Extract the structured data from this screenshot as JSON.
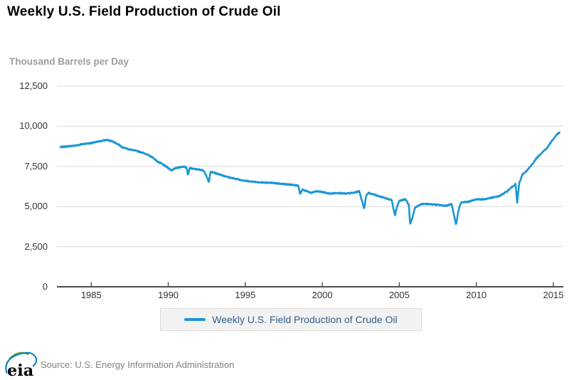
{
  "title": "Weekly U.S. Field Production of Crude Oil",
  "y_axis": {
    "label": "Thousand Barrels per Day",
    "tick_labels": [
      "0",
      "2,500",
      "5,000",
      "7,500",
      "10,000",
      "12,500"
    ]
  },
  "x_axis": {
    "tick_labels": [
      "1985",
      "1990",
      "1995",
      "2000",
      "2005",
      "2010",
      "2015"
    ]
  },
  "legend": {
    "label": "Weekly U.S. Field Production of Crude Oil"
  },
  "footer": {
    "logo_text": "eia",
    "source": "Source: U.S. Energy Information Administration"
  },
  "colors": {
    "line": "#1a96d5",
    "grid": "#d9d9d9",
    "axis": "#4d4d4d",
    "axis_text": "#333333",
    "subtitle_text": "#9e9e9e",
    "legend_text": "#33608a",
    "legend_bg": "#f2f2f2",
    "legend_border": "#dddddd",
    "source_text": "#808080",
    "logo_green": "#5fa821",
    "logo_blue": "#0c7cc2"
  },
  "chart_data": {
    "type": "line",
    "title": "Weekly U.S. Field Production of Crude Oil",
    "xlabel": "",
    "ylabel": "Thousand Barrels per Day",
    "units": "thousand barrels per day",
    "frequency": "weekly",
    "xlim": [
      1983.0,
      2015.6
    ],
    "ylim": [
      0,
      12500
    ],
    "x_ticks": [
      1985,
      1990,
      1995,
      2000,
      2005,
      2010,
      2015
    ],
    "y_ticks": [
      0,
      2500,
      5000,
      7500,
      10000,
      12500
    ],
    "grid": "horizontal",
    "legend_position": "bottom",
    "series": [
      {
        "name": "Weekly U.S. Field Production of Crude Oil",
        "color": "#1a96d5",
        "noise_amplitude": 32,
        "anchor_points": [
          [
            1983.0,
            8700
          ],
          [
            1983.5,
            8750
          ],
          [
            1984.0,
            8800
          ],
          [
            1984.5,
            8900
          ],
          [
            1985.0,
            8950
          ],
          [
            1985.5,
            9050
          ],
          [
            1986.0,
            9150
          ],
          [
            1986.4,
            9050
          ],
          [
            1986.8,
            8850
          ],
          [
            1987.0,
            8700
          ],
          [
            1987.5,
            8550
          ],
          [
            1988.0,
            8450
          ],
          [
            1988.5,
            8300
          ],
          [
            1989.0,
            8050
          ],
          [
            1989.3,
            7800
          ],
          [
            1989.6,
            7650
          ],
          [
            1990.0,
            7400
          ],
          [
            1990.2,
            7250
          ],
          [
            1990.5,
            7400
          ],
          [
            1991.0,
            7500
          ],
          [
            1991.2,
            7400
          ],
          [
            1991.28,
            6950
          ],
          [
            1991.4,
            7400
          ],
          [
            1991.6,
            7350
          ],
          [
            1992.0,
            7300
          ],
          [
            1992.3,
            7250
          ],
          [
            1992.63,
            6550
          ],
          [
            1992.75,
            7150
          ],
          [
            1993.0,
            7100
          ],
          [
            1993.5,
            6950
          ],
          [
            1994.0,
            6800
          ],
          [
            1994.5,
            6700
          ],
          [
            1995.0,
            6600
          ],
          [
            1995.5,
            6550
          ],
          [
            1996.0,
            6500
          ],
          [
            1996.5,
            6480
          ],
          [
            1997.0,
            6450
          ],
          [
            1997.5,
            6400
          ],
          [
            1998.0,
            6350
          ],
          [
            1998.45,
            6300
          ],
          [
            1998.55,
            5800
          ],
          [
            1998.7,
            6050
          ],
          [
            1999.0,
            5950
          ],
          [
            1999.3,
            5850
          ],
          [
            1999.6,
            5950
          ],
          [
            2000.0,
            5900
          ],
          [
            2000.5,
            5800
          ],
          [
            2001.0,
            5850
          ],
          [
            2001.5,
            5800
          ],
          [
            2002.0,
            5850
          ],
          [
            2002.4,
            5950
          ],
          [
            2002.72,
            4870
          ],
          [
            2002.85,
            5700
          ],
          [
            2003.0,
            5850
          ],
          [
            2003.5,
            5700
          ],
          [
            2004.0,
            5550
          ],
          [
            2004.5,
            5400
          ],
          [
            2004.72,
            4450
          ],
          [
            2004.85,
            5000
          ],
          [
            2005.0,
            5350
          ],
          [
            2005.4,
            5450
          ],
          [
            2005.62,
            5100
          ],
          [
            2005.7,
            3900
          ],
          [
            2005.85,
            4300
          ],
          [
            2006.0,
            4900
          ],
          [
            2006.4,
            5150
          ],
          [
            2007.0,
            5150
          ],
          [
            2007.5,
            5100
          ],
          [
            2008.0,
            5050
          ],
          [
            2008.4,
            5150
          ],
          [
            2008.68,
            3850
          ],
          [
            2008.85,
            4800
          ],
          [
            2009.0,
            5250
          ],
          [
            2009.5,
            5300
          ],
          [
            2010.0,
            5450
          ],
          [
            2010.5,
            5450
          ],
          [
            2011.0,
            5550
          ],
          [
            2011.5,
            5650
          ],
          [
            2012.0,
            5950
          ],
          [
            2012.3,
            6200
          ],
          [
            2012.55,
            6400
          ],
          [
            2012.65,
            5200
          ],
          [
            2012.78,
            6450
          ],
          [
            2013.0,
            7000
          ],
          [
            2013.3,
            7250
          ],
          [
            2013.6,
            7600
          ],
          [
            2013.9,
            8000
          ],
          [
            2014.0,
            8100
          ],
          [
            2014.3,
            8400
          ],
          [
            2014.6,
            8650
          ],
          [
            2014.9,
            9100
          ],
          [
            2015.0,
            9200
          ],
          [
            2015.15,
            9400
          ],
          [
            2015.3,
            9550
          ],
          [
            2015.42,
            9600
          ]
        ]
      }
    ]
  }
}
